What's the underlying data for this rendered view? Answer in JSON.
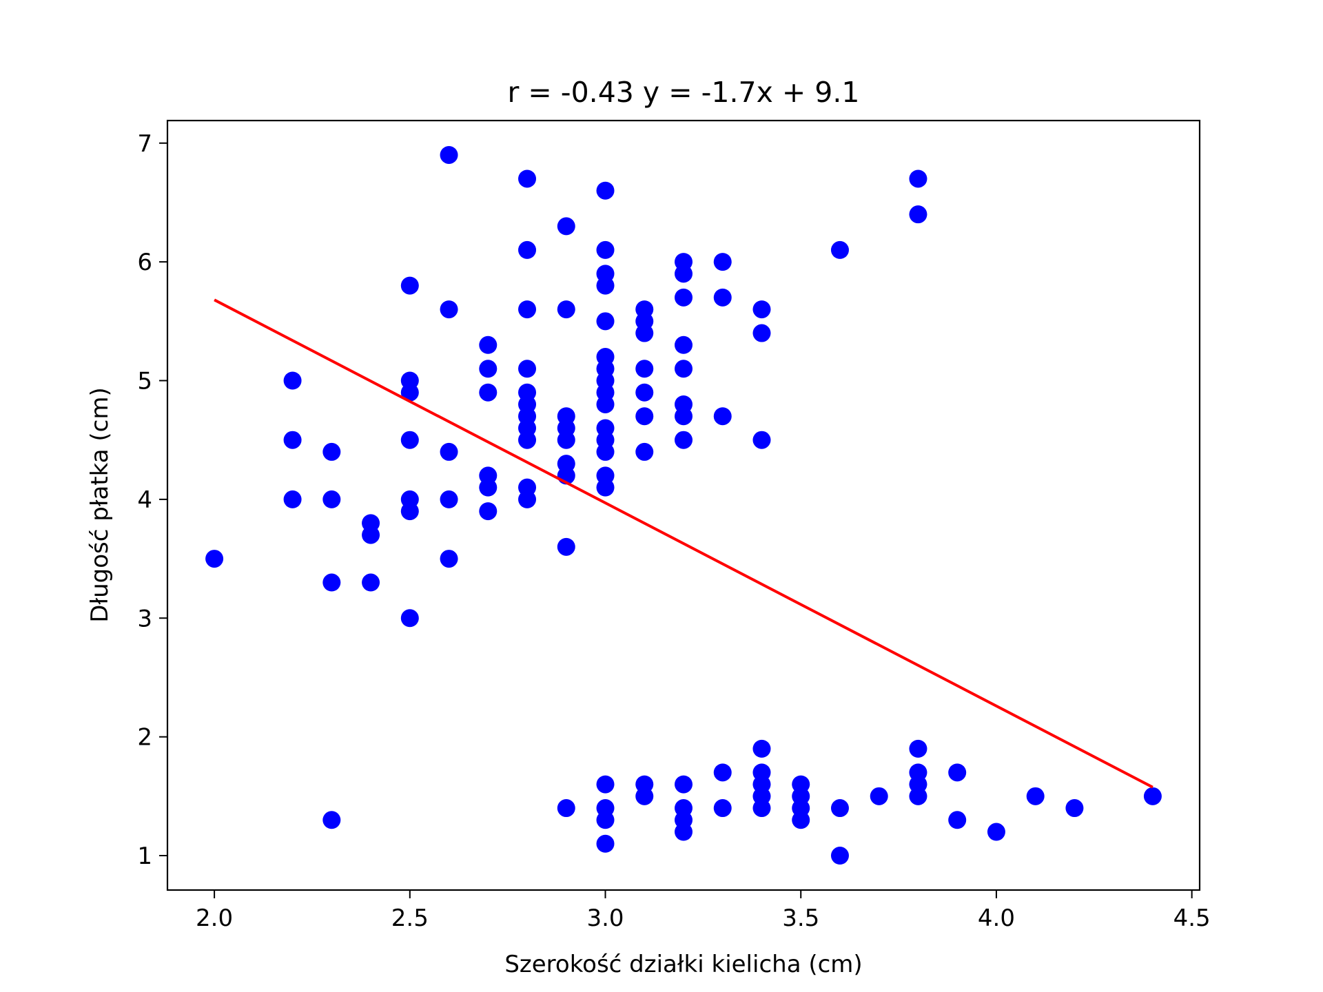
{
  "chart_data": {
    "type": "scatter",
    "title": "r = -0.43 y = -1.7x + 9.1",
    "xlabel": "Szerokość działki kielicha (cm)",
    "ylabel": "Długość płatka (cm)",
    "xlim": [
      1.88,
      4.52
    ],
    "ylim": [
      0.71,
      7.19
    ],
    "xticks": [
      2.0,
      2.5,
      3.0,
      3.5,
      4.0,
      4.5
    ],
    "xtick_labels": [
      "2.0",
      "2.5",
      "3.0",
      "3.5",
      "4.0",
      "4.5"
    ],
    "yticks": [
      1,
      2,
      3,
      4,
      5,
      6,
      7
    ],
    "ytick_labels": [
      "1",
      "2",
      "3",
      "4",
      "5",
      "6",
      "7"
    ],
    "grid": false,
    "marker_color": "#0000ff",
    "line_color": "#ff0000",
    "points": [
      [
        2.0,
        3.5
      ],
      [
        2.2,
        5.0
      ],
      [
        2.2,
        4.5
      ],
      [
        2.2,
        4.0
      ],
      [
        2.3,
        4.4
      ],
      [
        2.3,
        4.0
      ],
      [
        2.3,
        3.3
      ],
      [
        2.3,
        1.3
      ],
      [
        2.4,
        3.8
      ],
      [
        2.4,
        3.7
      ],
      [
        2.4,
        3.3
      ],
      [
        2.5,
        5.8
      ],
      [
        2.5,
        5.0
      ],
      [
        2.5,
        4.9
      ],
      [
        2.5,
        4.5
      ],
      [
        2.5,
        4.0
      ],
      [
        2.5,
        3.9
      ],
      [
        2.5,
        3.0
      ],
      [
        2.6,
        6.9
      ],
      [
        2.6,
        5.6
      ],
      [
        2.6,
        4.4
      ],
      [
        2.6,
        4.0
      ],
      [
        2.6,
        3.5
      ],
      [
        2.7,
        5.3
      ],
      [
        2.7,
        5.1
      ],
      [
        2.7,
        4.9
      ],
      [
        2.7,
        4.2
      ],
      [
        2.7,
        4.1
      ],
      [
        2.7,
        3.9
      ],
      [
        2.8,
        6.7
      ],
      [
        2.8,
        6.1
      ],
      [
        2.8,
        5.6
      ],
      [
        2.8,
        5.1
      ],
      [
        2.8,
        4.9
      ],
      [
        2.8,
        4.8
      ],
      [
        2.8,
        4.7
      ],
      [
        2.8,
        4.6
      ],
      [
        2.8,
        4.5
      ],
      [
        2.8,
        4.1
      ],
      [
        2.8,
        4.0
      ],
      [
        2.9,
        6.3
      ],
      [
        2.9,
        5.6
      ],
      [
        2.9,
        4.7
      ],
      [
        2.9,
        4.6
      ],
      [
        2.9,
        4.5
      ],
      [
        2.9,
        4.3
      ],
      [
        2.9,
        4.2
      ],
      [
        2.9,
        3.6
      ],
      [
        2.9,
        1.4
      ],
      [
        3.0,
        6.6
      ],
      [
        3.0,
        6.1
      ],
      [
        3.0,
        5.9
      ],
      [
        3.0,
        5.8
      ],
      [
        3.0,
        5.5
      ],
      [
        3.0,
        5.2
      ],
      [
        3.0,
        5.1
      ],
      [
        3.0,
        5.0
      ],
      [
        3.0,
        4.9
      ],
      [
        3.0,
        4.8
      ],
      [
        3.0,
        4.6
      ],
      [
        3.0,
        4.5
      ],
      [
        3.0,
        4.4
      ],
      [
        3.0,
        4.2
      ],
      [
        3.0,
        4.1
      ],
      [
        3.0,
        1.6
      ],
      [
        3.0,
        1.4
      ],
      [
        3.0,
        1.3
      ],
      [
        3.0,
        1.1
      ],
      [
        3.1,
        5.6
      ],
      [
        3.1,
        5.5
      ],
      [
        3.1,
        5.4
      ],
      [
        3.1,
        5.1
      ],
      [
        3.1,
        4.9
      ],
      [
        3.1,
        4.7
      ],
      [
        3.1,
        4.4
      ],
      [
        3.1,
        1.6
      ],
      [
        3.1,
        1.5
      ],
      [
        3.2,
        6.0
      ],
      [
        3.2,
        5.9
      ],
      [
        3.2,
        5.7
      ],
      [
        3.2,
        5.3
      ],
      [
        3.2,
        5.1
      ],
      [
        3.2,
        4.8
      ],
      [
        3.2,
        4.7
      ],
      [
        3.2,
        4.5
      ],
      [
        3.2,
        1.6
      ],
      [
        3.2,
        1.4
      ],
      [
        3.2,
        1.3
      ],
      [
        3.2,
        1.2
      ],
      [
        3.3,
        6.0
      ],
      [
        3.3,
        5.7
      ],
      [
        3.3,
        4.7
      ],
      [
        3.3,
        1.7
      ],
      [
        3.3,
        1.4
      ],
      [
        3.4,
        5.6
      ],
      [
        3.4,
        5.4
      ],
      [
        3.4,
        4.5
      ],
      [
        3.4,
        1.9
      ],
      [
        3.4,
        1.7
      ],
      [
        3.4,
        1.6
      ],
      [
        3.4,
        1.5
      ],
      [
        3.4,
        1.4
      ],
      [
        3.5,
        1.6
      ],
      [
        3.5,
        1.5
      ],
      [
        3.5,
        1.4
      ],
      [
        3.5,
        1.3
      ],
      [
        3.6,
        6.1
      ],
      [
        3.6,
        1.4
      ],
      [
        3.6,
        1.0
      ],
      [
        3.7,
        1.5
      ],
      [
        3.8,
        6.7
      ],
      [
        3.8,
        6.4
      ],
      [
        3.8,
        1.9
      ],
      [
        3.8,
        1.7
      ],
      [
        3.8,
        1.6
      ],
      [
        3.8,
        1.5
      ],
      [
        3.9,
        1.7
      ],
      [
        3.9,
        1.3
      ],
      [
        4.0,
        1.2
      ],
      [
        4.1,
        1.5
      ],
      [
        4.2,
        1.4
      ],
      [
        4.4,
        1.5
      ]
    ],
    "regression": {
      "slope": -1.71,
      "intercept": 9.1,
      "x_range": [
        2.0,
        4.4
      ]
    }
  }
}
